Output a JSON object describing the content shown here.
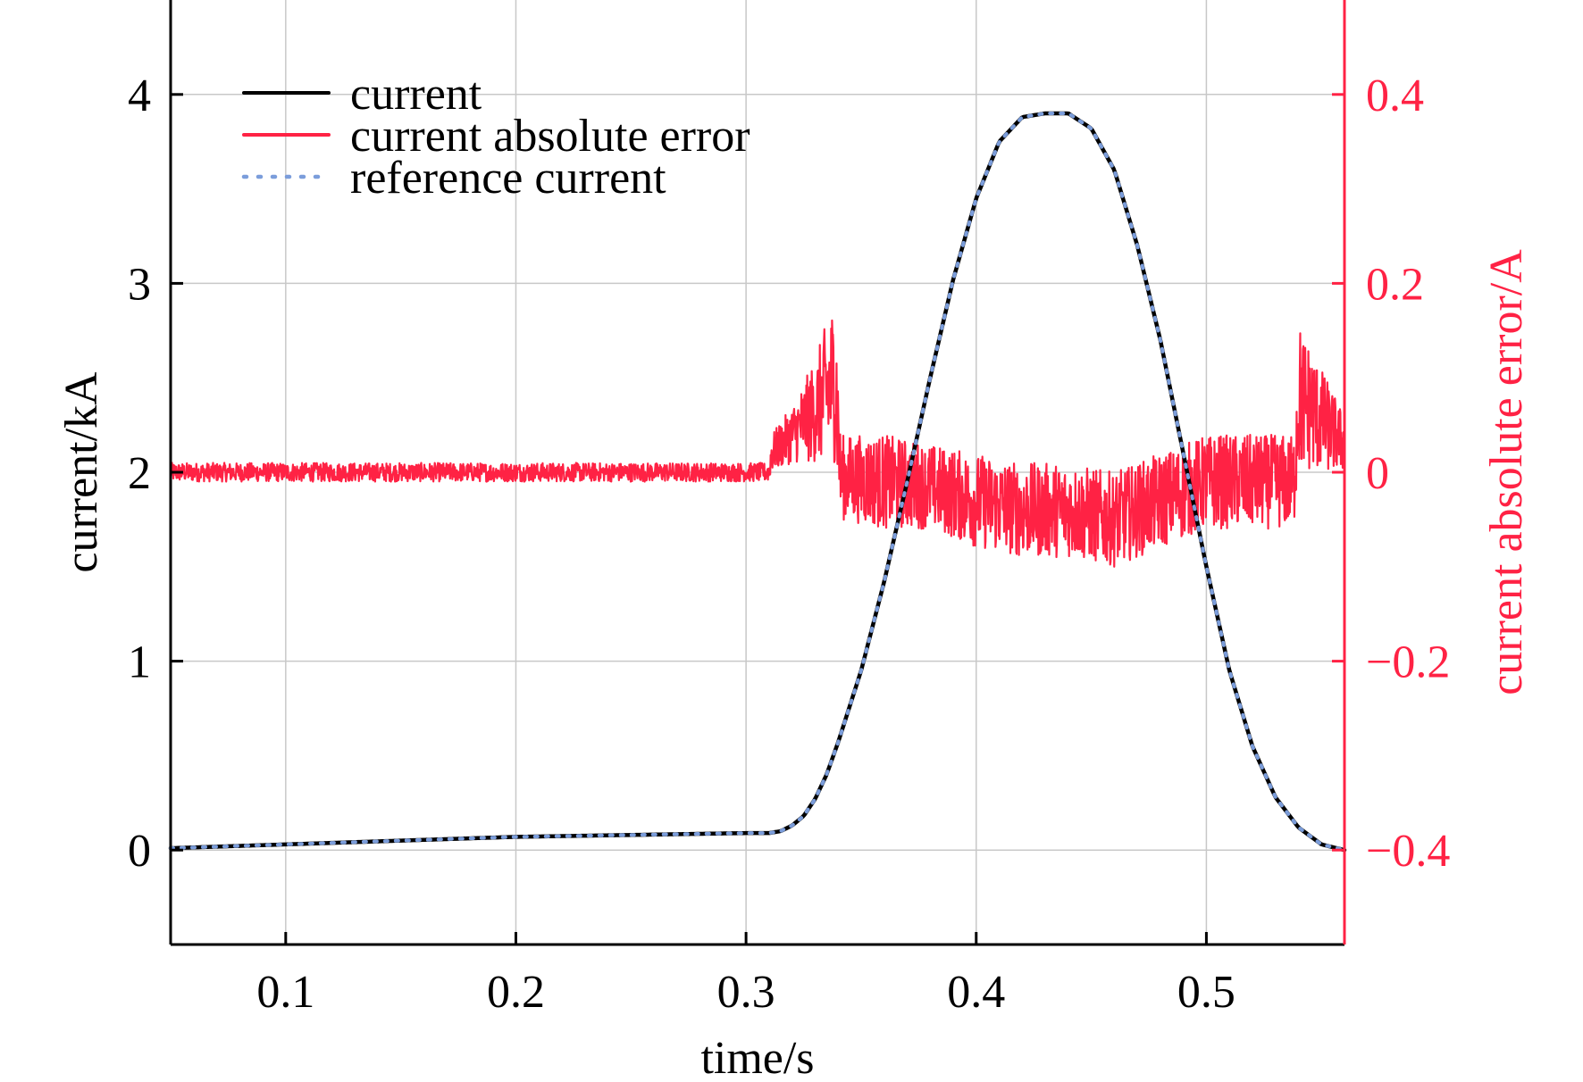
{
  "chart_data": {
    "type": "line",
    "xlabel": "time/s",
    "ylabel_left": "current/kA",
    "ylabel_right": "current absolute error/A",
    "xlim": [
      0.05,
      0.56
    ],
    "ylim_left": [
      -0.5,
      4.5
    ],
    "ylim_right": [
      -0.5,
      0.5
    ],
    "x_ticks": [
      {
        "value": 0.1,
        "label": "0.1"
      },
      {
        "value": 0.2,
        "label": "0.2"
      },
      {
        "value": 0.3,
        "label": "0.3"
      },
      {
        "value": 0.4,
        "label": "0.4"
      },
      {
        "value": 0.5,
        "label": "0.5"
      }
    ],
    "y_left_ticks": [
      {
        "value": 0,
        "label": "0"
      },
      {
        "value": 1,
        "label": "1"
      },
      {
        "value": 2,
        "label": "2"
      },
      {
        "value": 3,
        "label": "3"
      },
      {
        "value": 4,
        "label": "4"
      }
    ],
    "y_right_ticks": [
      {
        "value": -0.4,
        "label": "−0.4"
      },
      {
        "value": -0.2,
        "label": "−0.2"
      },
      {
        "value": 0,
        "label": "0"
      },
      {
        "value": 0.2,
        "label": "0.2"
      },
      {
        "value": 0.4,
        "label": "0.4"
      }
    ],
    "grid": true,
    "legend_position": "top-left",
    "legend": [
      {
        "name": "current",
        "color": "#000000",
        "style": "solid"
      },
      {
        "name": "current absolute error",
        "color": "#ff2244",
        "style": "solid"
      },
      {
        "name": "reference current",
        "color": "#7b9ddb",
        "style": "dotted"
      }
    ],
    "colors": {
      "current": "#000000",
      "error": "#ff2244",
      "reference": "#7b9ddb",
      "right_axis": "#ff2244",
      "grid": "#c8c8c8"
    },
    "series": [
      {
        "name": "current",
        "axis": "left",
        "x": [
          0.05,
          0.1,
          0.15,
          0.2,
          0.25,
          0.3,
          0.31,
          0.315,
          0.32,
          0.325,
          0.33,
          0.335,
          0.34,
          0.35,
          0.36,
          0.37,
          0.38,
          0.39,
          0.4,
          0.41,
          0.42,
          0.43,
          0.44,
          0.45,
          0.46,
          0.47,
          0.48,
          0.49,
          0.5,
          0.51,
          0.52,
          0.53,
          0.54,
          0.55,
          0.56
        ],
        "values": [
          0.01,
          0.03,
          0.05,
          0.07,
          0.08,
          0.09,
          0.09,
          0.1,
          0.13,
          0.18,
          0.27,
          0.4,
          0.57,
          0.95,
          1.42,
          1.95,
          2.5,
          3.02,
          3.45,
          3.75,
          3.88,
          3.9,
          3.9,
          3.82,
          3.6,
          3.2,
          2.7,
          2.1,
          1.5,
          0.95,
          0.55,
          0.28,
          0.12,
          0.03,
          0.0
        ]
      },
      {
        "name": "reference current",
        "axis": "left",
        "x": [
          0.05,
          0.1,
          0.15,
          0.2,
          0.25,
          0.3,
          0.31,
          0.315,
          0.32,
          0.325,
          0.33,
          0.335,
          0.34,
          0.35,
          0.36,
          0.37,
          0.38,
          0.39,
          0.4,
          0.41,
          0.42,
          0.43,
          0.44,
          0.45,
          0.46,
          0.47,
          0.48,
          0.49,
          0.5,
          0.51,
          0.52,
          0.53,
          0.54,
          0.55,
          0.56
        ],
        "values": [
          0.01,
          0.03,
          0.05,
          0.07,
          0.08,
          0.09,
          0.09,
          0.1,
          0.13,
          0.18,
          0.27,
          0.4,
          0.57,
          0.95,
          1.42,
          1.95,
          2.5,
          3.02,
          3.45,
          3.75,
          3.88,
          3.9,
          3.9,
          3.82,
          3.6,
          3.2,
          2.7,
          2.1,
          1.5,
          0.95,
          0.55,
          0.28,
          0.12,
          0.03,
          0.0
        ]
      },
      {
        "name": "current absolute error",
        "axis": "right",
        "x": [
          0.05,
          0.31,
          0.311,
          0.32,
          0.33,
          0.335,
          0.339,
          0.341,
          0.36,
          0.38,
          0.4,
          0.42,
          0.44,
          0.46,
          0.48,
          0.5,
          0.52,
          0.538,
          0.54,
          0.55,
          0.56
        ],
        "upper": [
          0.01,
          0.01,
          0.04,
          0.07,
          0.12,
          0.16,
          0.19,
          0.04,
          0.04,
          0.03,
          0.02,
          0.01,
          0.01,
          0.0,
          0.02,
          0.04,
          0.04,
          0.04,
          0.16,
          0.11,
          0.06
        ],
        "lower": [
          -0.01,
          -0.01,
          0.0,
          0.01,
          0.01,
          0.01,
          0.01,
          -0.05,
          -0.06,
          -0.06,
          -0.08,
          -0.09,
          -0.09,
          -0.1,
          -0.08,
          -0.06,
          -0.06,
          -0.06,
          0.0,
          0.0,
          0.0
        ],
        "noise_band": [
          0.04,
          0.04,
          0.05,
          0.05,
          0.06,
          0.06,
          0.06,
          0.08,
          0.07,
          0.07,
          0.08,
          0.07,
          0.07,
          0.09,
          0.07,
          0.06,
          0.06,
          0.07,
          0.05,
          0.05,
          0.04
        ]
      }
    ]
  }
}
